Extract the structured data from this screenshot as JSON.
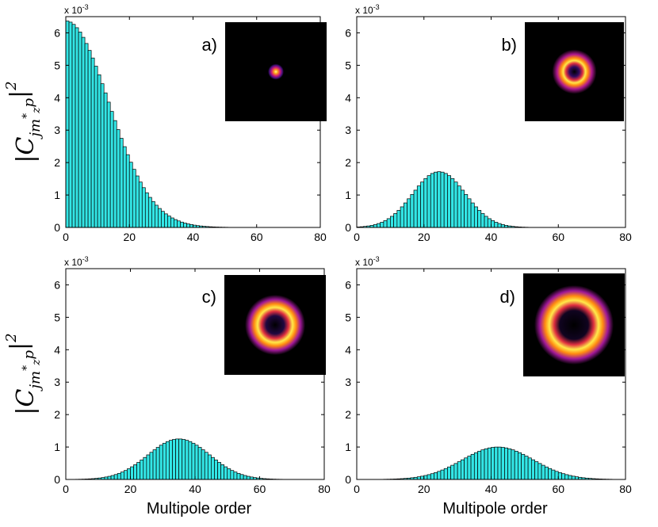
{
  "chart_data": [
    {
      "type": "bar",
      "panel_label": "a)",
      "exponent_label": "x 10",
      "exponent_power": "-3",
      "xlim": [
        0,
        80
      ],
      "ylim": [
        0,
        6.5
      ],
      "xticks": [
        "0",
        "20",
        "40",
        "60",
        "80"
      ],
      "yticks": [
        "0",
        "1",
        "2",
        "3",
        "4",
        "5",
        "6"
      ],
      "ylabel": "|C_{jm*_z p}|^2",
      "xlabel": "",
      "distribution": {
        "kind": "half-gaussian",
        "peak": 6.37,
        "mean": 0,
        "sigma": 13.5,
        "n_bars": 60
      },
      "inset": "gaussian spot"
    },
    {
      "type": "bar",
      "panel_label": "b)",
      "exponent_label": "x 10",
      "exponent_power": "-3",
      "xlim": [
        0,
        80
      ],
      "ylim": [
        0,
        6.5
      ],
      "xticks": [
        "0",
        "20",
        "40",
        "60",
        "80"
      ],
      "yticks": [
        "0",
        "1",
        "2",
        "3",
        "4",
        "5",
        "6"
      ],
      "ylabel": "",
      "xlabel": "",
      "distribution": {
        "kind": "gaussian",
        "peak": 1.72,
        "mean": 24.5,
        "sigma": 7.8,
        "n_bars": 75
      },
      "inset": "small ring"
    },
    {
      "type": "bar",
      "panel_label": "c)",
      "exponent_label": "x 10",
      "exponent_power": "-3",
      "xlim": [
        0,
        80
      ],
      "ylim": [
        0,
        6.5
      ],
      "xticks": [
        "0",
        "20",
        "40",
        "60",
        "80"
      ],
      "yticks": [
        "0",
        "1",
        "2",
        "3",
        "4",
        "5",
        "6"
      ],
      "ylabel": "|C_{jm*_z p}|^2",
      "xlabel": "Multipole order",
      "distribution": {
        "kind": "gaussian",
        "peak": 1.25,
        "mean": 35,
        "sigma": 9.5,
        "n_bars": 80
      },
      "inset": "medium ring"
    },
    {
      "type": "bar",
      "panel_label": "d)",
      "exponent_label": "x 10",
      "exponent_power": "-3",
      "xlim": [
        0,
        80
      ],
      "ylim": [
        0,
        6.5
      ],
      "xticks": [
        "0",
        "20",
        "40",
        "60",
        "80"
      ],
      "yticks": [
        "0",
        "1",
        "2",
        "3",
        "4",
        "5",
        "6"
      ],
      "ylabel": "",
      "xlabel": "Multipole order",
      "distribution": {
        "kind": "gaussian",
        "peak": 1.0,
        "mean": 42,
        "sigma": 10.5,
        "n_bars": 80
      },
      "inset": "large ring"
    }
  ]
}
